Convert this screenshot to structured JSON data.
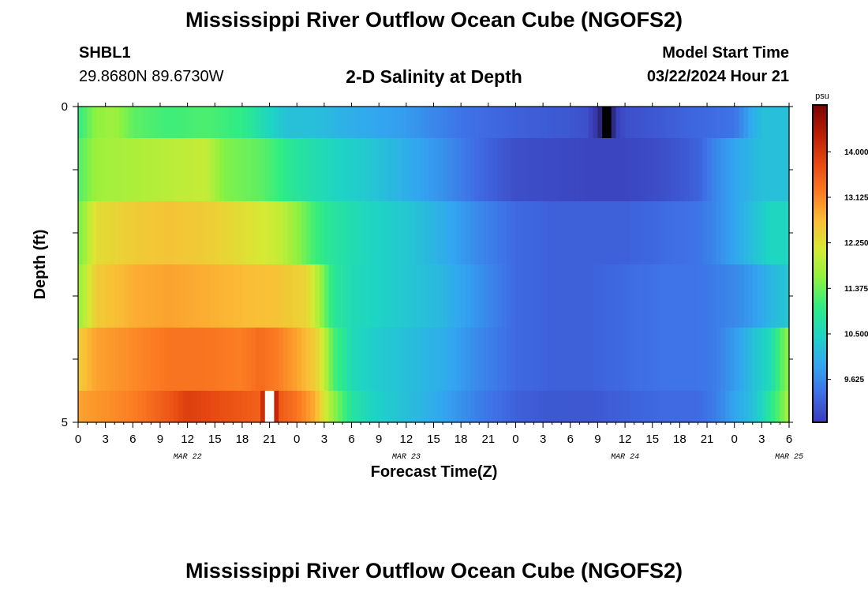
{
  "page": {
    "title": "Mississippi River Outflow Ocean Cube (NGOFS2)",
    "footer_title": "Mississippi River Outflow Ocean Cube (NGOFS2)"
  },
  "header": {
    "station_id": "SHBL1",
    "station_coords": "29.8680N  89.6730W",
    "plot_title": "2-D Salinity at Depth",
    "model_label": "Model Start Time",
    "model_time": "03/22/2024 Hour 21"
  },
  "chart_data": {
    "type": "heatmap",
    "title": "2-D Salinity at Depth",
    "xlabel": "Forecast Time(Z)",
    "ylabel": "Depth (ft)",
    "ylim": [
      0,
      5
    ],
    "y_tick_labels": [
      "0",
      "5"
    ],
    "x_tick_labels": [
      "0",
      "3",
      "6",
      "9",
      "12",
      "15",
      "18",
      "21",
      "0",
      "3",
      "6",
      "9",
      "12",
      "15",
      "18",
      "21",
      "0",
      "3",
      "6",
      "9",
      "12",
      "15",
      "18",
      "21",
      "0",
      "3",
      "6"
    ],
    "date_labels": [
      {
        "label": "MAR 22",
        "hour": 12
      },
      {
        "label": "MAR 23",
        "hour": 36
      },
      {
        "label": "MAR 24",
        "hour": 60
      },
      {
        "label": "MAR 25",
        "hour": 78
      }
    ],
    "x_range_hours": [
      0,
      78
    ],
    "units": "psu",
    "colorbar_ticks": [
      "14.000",
      "13.125",
      "12.250",
      "11.375",
      "10.500",
      "9.625"
    ],
    "colorbar_values": [
      14.0,
      13.125,
      12.25,
      11.375,
      10.5,
      9.625
    ],
    "colorbar_range": [
      8.8,
      14.9
    ],
    "layers": [
      {
        "depth_range": [
          0.0,
          0.5
        ],
        "hours": [
          0,
          2,
          4,
          6,
          10,
          14,
          18,
          21,
          23,
          26,
          30,
          36,
          42,
          48,
          54,
          56,
          57,
          57.5,
          58,
          58.5,
          59,
          60,
          66,
          72,
          74,
          75,
          78
        ],
        "values": [
          11.0,
          11.6,
          11.7,
          11.3,
          11.1,
          11.2,
          11.0,
          10.5,
          10.2,
          10.2,
          10.0,
          9.8,
          9.4,
          9.2,
          9.1,
          9.0,
          8.5,
          7.5,
          6.0,
          7.5,
          8.8,
          9.0,
          9.2,
          9.4,
          10.0,
          10.2,
          10.2
        ]
      },
      {
        "depth_range": [
          0.5,
          1.5
        ],
        "hours": [
          0,
          2,
          6,
          10,
          14,
          16,
          20,
          24,
          28,
          32,
          36,
          40,
          44,
          48,
          52,
          56,
          60,
          64,
          68,
          70,
          72,
          74,
          75,
          76,
          78
        ],
        "values": [
          11.2,
          11.7,
          11.8,
          11.9,
          12.0,
          11.5,
          11.3,
          10.8,
          10.5,
          10.3,
          10.0,
          9.7,
          9.3,
          9.0,
          8.95,
          8.9,
          8.9,
          9.0,
          9.2,
          9.6,
          9.9,
          10.1,
          10.2,
          10.2,
          10.2
        ]
      },
      {
        "depth_range": [
          1.5,
          2.5
        ],
        "hours": [
          0,
          2,
          6,
          10,
          14,
          18,
          22,
          24,
          26,
          28,
          32,
          36,
          40,
          44,
          48,
          52,
          56,
          60,
          64,
          68,
          70,
          72,
          74,
          76,
          78
        ],
        "values": [
          11.4,
          12.3,
          12.5,
          12.6,
          12.5,
          12.3,
          12.0,
          11.6,
          11.1,
          10.8,
          10.5,
          10.3,
          10.0,
          9.6,
          9.3,
          9.2,
          9.2,
          9.2,
          9.3,
          9.4,
          9.6,
          9.9,
          10.2,
          10.5,
          10.5
        ]
      },
      {
        "depth_range": [
          2.5,
          3.5
        ],
        "hours": [
          0,
          2,
          6,
          10,
          14,
          18,
          22,
          25,
          26,
          27,
          28,
          30,
          32,
          36,
          40,
          44,
          48,
          52,
          56,
          60,
          64,
          68,
          70,
          72,
          74,
          76,
          78
        ],
        "values": [
          11.6,
          12.5,
          12.8,
          12.9,
          12.8,
          12.7,
          12.6,
          12.4,
          12.0,
          11.4,
          10.9,
          10.6,
          10.5,
          10.3,
          10.1,
          9.7,
          9.3,
          9.2,
          9.2,
          9.3,
          9.4,
          9.4,
          9.5,
          9.6,
          9.8,
          10.1,
          10.3
        ]
      },
      {
        "depth_range": [
          3.5,
          4.5
        ],
        "hours": [
          0,
          2,
          6,
          10,
          14,
          18,
          20,
          22,
          24,
          26,
          27,
          28,
          30,
          32,
          36,
          40,
          44,
          48,
          52,
          56,
          60,
          64,
          68,
          70,
          72,
          74,
          76,
          77,
          78
        ],
        "values": [
          12.5,
          12.9,
          13.1,
          13.3,
          13.3,
          13.2,
          13.4,
          13.2,
          12.9,
          12.5,
          12.0,
          11.2,
          10.6,
          10.4,
          10.2,
          10.0,
          9.6,
          9.3,
          9.2,
          9.2,
          9.3,
          9.4,
          9.4,
          9.5,
          9.8,
          10.2,
          10.6,
          11.2,
          11.6
        ]
      },
      {
        "depth_range": [
          4.5,
          5.0
        ],
        "hours": [
          0,
          2,
          6,
          10,
          12,
          14,
          18,
          20,
          21,
          22,
          24,
          26,
          28,
          30,
          32,
          36,
          40,
          44,
          48,
          52,
          56,
          60,
          64,
          68,
          70,
          72,
          74,
          75,
          76,
          77,
          78
        ],
        "values": [
          12.9,
          13.0,
          13.2,
          13.6,
          13.9,
          13.8,
          13.6,
          13.5,
          16.0,
          13.6,
          13.3,
          12.8,
          11.6,
          10.8,
          10.5,
          10.2,
          9.9,
          9.5,
          9.2,
          9.1,
          9.1,
          9.2,
          9.3,
          9.3,
          9.5,
          9.9,
          10.2,
          10.5,
          10.9,
          11.3,
          11.8
        ]
      }
    ]
  },
  "colors": {
    "axis": "#000000",
    "colormap_stops": [
      "#3b3cb8",
      "#3f6fe6",
      "#32a7f0",
      "#1ed4c4",
      "#2fec85",
      "#8ef240",
      "#d6ea34",
      "#fbbd36",
      "#fb7a22",
      "#e64711",
      "#b91d05",
      "#7a0403"
    ]
  }
}
